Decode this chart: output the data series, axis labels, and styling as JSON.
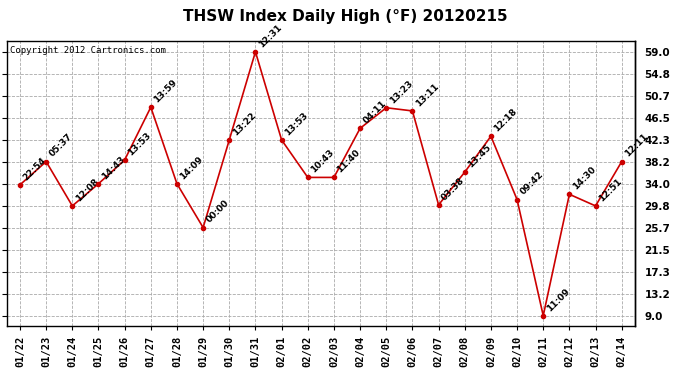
{
  "title": "THSW Index Daily High (°F) 20120215",
  "copyright": "Copyright 2012 Cartronics.com",
  "dates": [
    "01/22",
    "01/23",
    "01/24",
    "01/25",
    "01/26",
    "01/27",
    "01/28",
    "01/29",
    "01/30",
    "01/31",
    "02/01",
    "02/02",
    "02/03",
    "02/04",
    "02/05",
    "02/06",
    "02/07",
    "02/08",
    "02/09",
    "02/10",
    "02/11",
    "02/12",
    "02/13",
    "02/14"
  ],
  "values": [
    33.8,
    38.2,
    29.8,
    34.0,
    38.5,
    48.5,
    34.0,
    25.7,
    42.3,
    59.0,
    42.3,
    35.2,
    35.2,
    44.5,
    48.4,
    47.8,
    30.0,
    36.2,
    43.0,
    31.0,
    9.0,
    32.0,
    29.8,
    38.2
  ],
  "labels": [
    "22:54",
    "05:37",
    "12:08",
    "14:43",
    "13:53",
    "13:59",
    "14:09",
    "00:00",
    "13:22",
    "12:31",
    "13:53",
    "10:43",
    "11:40",
    "04:11",
    "13:23",
    "13:11",
    "03:38",
    "13:45",
    "12:18",
    "09:42",
    "11:09",
    "14:30",
    "12:51",
    "12:11"
  ],
  "yticks": [
    9.0,
    13.2,
    17.3,
    21.5,
    25.7,
    29.8,
    34.0,
    38.2,
    42.3,
    46.5,
    50.7,
    54.8,
    59.0
  ],
  "ylim": [
    7.0,
    61.0
  ],
  "line_color": "#cc0000",
  "marker_color": "#cc0000",
  "bg_color": "#ffffff",
  "grid_color": "#aaaaaa",
  "title_fontsize": 11,
  "label_fontsize": 6.5,
  "tick_fontsize": 7.5,
  "copyright_fontsize": 6.5
}
